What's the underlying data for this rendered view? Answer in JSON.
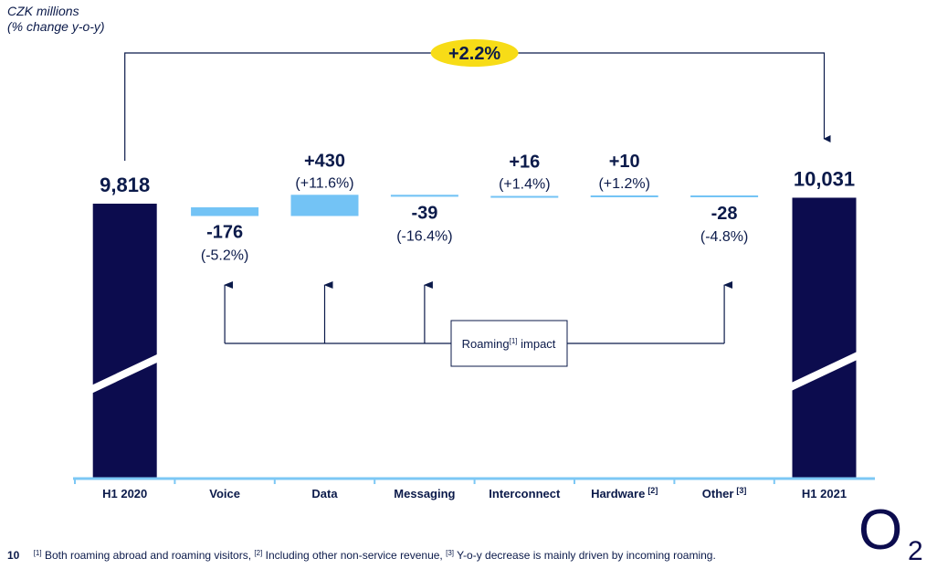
{
  "header": {
    "units_line1": "CZK millions",
    "units_line2": "(% change y-o-y)"
  },
  "change_badge": {
    "text": "+2.2%",
    "color": "#f7dc17"
  },
  "roaming_box": {
    "label": "Roaming",
    "sup": "[1]",
    "suffix": " impact"
  },
  "footnote": {
    "page_number": "10",
    "items": [
      {
        "sup": "[1]",
        "text": " Both roaming abroad and roaming visitors, "
      },
      {
        "sup": "[2]",
        "text": " Including other non-service revenue, "
      },
      {
        "sup": "[3]",
        "text": " Y-o-y decrease is mainly driven by incoming roaming."
      }
    ]
  },
  "logo": {
    "letter": "O",
    "subscript": "2"
  },
  "colors": {
    "total_bar": "#0c0c4e",
    "delta_bar": "#73c3f5",
    "axis": "#7cc8f5",
    "text": "#0b1a4a"
  },
  "chart_data": {
    "type": "bar",
    "subtype": "waterfall",
    "categories": [
      "H1 2020",
      "Voice",
      "Data",
      "Messaging",
      "Interconnect",
      "Hardware",
      "Other",
      "H1 2021"
    ],
    "category_sups": [
      "",
      "",
      "",
      "",
      "",
      "[2]",
      "[3]",
      ""
    ],
    "values": [
      9818,
      -176,
      430,
      -39,
      16,
      10,
      -28,
      10031
    ],
    "value_labels": [
      "9,818",
      "-176",
      "+430",
      "-39",
      "+16",
      "+10",
      "-28",
      "10,031"
    ],
    "pct_labels": [
      "",
      "(-5.2%)",
      "(+11.6%)",
      "(-16.4%)",
      "(+1.4%)",
      "(+1.2%)",
      "(-4.8%)",
      ""
    ],
    "kinds": [
      "total",
      "delta",
      "delta",
      "delta",
      "delta",
      "delta",
      "delta",
      "total"
    ],
    "roaming_impact_categories": [
      "Voice",
      "Data",
      "Messaging",
      "Other"
    ],
    "ylabel": "CZK millions",
    "total_change": "+2.2%"
  }
}
